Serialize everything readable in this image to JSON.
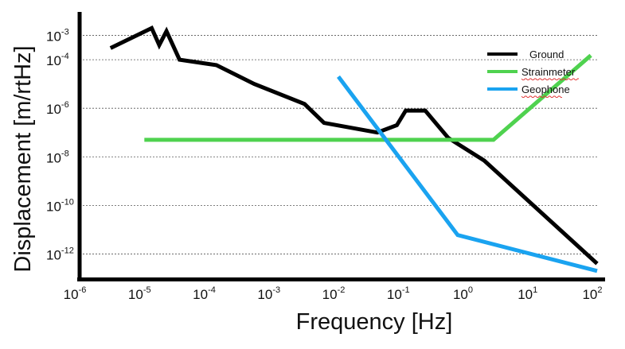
{
  "chart_data": {
    "type": "line",
    "xlabel": "Frequency [Hz]",
    "ylabel": "Displacement [m/rtHz]",
    "x_scale": "log",
    "y_scale": "log",
    "xlim": [
      1e-06,
      100
    ],
    "ylim": [
      1e-13,
      0.01
    ],
    "grid": "horizontal dotted",
    "legend_position": "top-right",
    "x_ticks": [
      {
        "base": "10",
        "exp": "-6"
      },
      {
        "base": "10",
        "exp": "-5"
      },
      {
        "base": "10",
        "exp": "-4"
      },
      {
        "base": "10",
        "exp": "-3"
      },
      {
        "base": "10",
        "exp": "-2"
      },
      {
        "base": "10",
        "exp": "-1"
      },
      {
        "base": "10",
        "exp": "0"
      },
      {
        "base": "10",
        "exp": "1"
      },
      {
        "base": "10",
        "exp": "2"
      }
    ],
    "y_ticks": [
      {
        "base": "10",
        "exp": "-3",
        "value": 0.001
      },
      {
        "base": "10",
        "exp": "-4",
        "value": 0.0001
      },
      {
        "base": "10",
        "exp": "-6",
        "value": 1e-06
      },
      {
        "base": "10",
        "exp": "-8",
        "value": 1e-08
      },
      {
        "base": "10",
        "exp": "-10",
        "value": 1e-10
      },
      {
        "base": "10",
        "exp": "-12",
        "value": 1e-12
      }
    ],
    "series": [
      {
        "name": "Ground",
        "color": "#000000",
        "x": [
          3e-06,
          1.3e-05,
          1.7e-05,
          2.2e-05,
          3.5e-05,
          0.00013,
          0.0005,
          0.003,
          0.006,
          0.04,
          0.08,
          0.11,
          0.22,
          0.5,
          1.8,
          100
        ],
        "y": [
          0.0003,
          0.002,
          0.0004,
          0.0015,
          0.0001,
          6e-05,
          1e-05,
          1.5e-06,
          2.5e-07,
          1e-07,
          2e-07,
          8e-07,
          8e-07,
          6e-08,
          7e-09,
          4e-13
        ]
      },
      {
        "name": "Strainmeter",
        "color": "#4fd24f",
        "x": [
          1e-05,
          2.5,
          80
        ],
        "y": [
          5e-08,
          5e-08,
          0.00015
        ]
      },
      {
        "name": "Geophone",
        "color": "#1aa3f0",
        "x": [
          0.01,
          0.7,
          100
        ],
        "y": [
          2e-05,
          6e-12,
          2e-13
        ]
      }
    ]
  }
}
